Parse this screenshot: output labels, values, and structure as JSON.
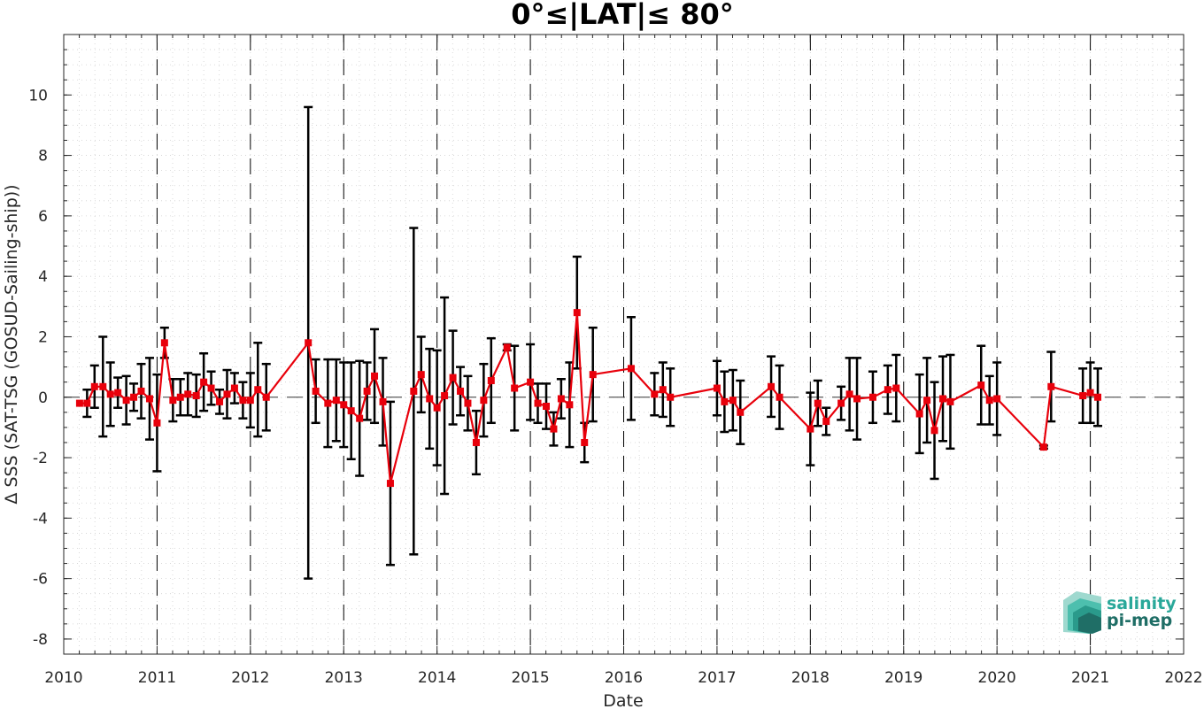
{
  "chart_data": {
    "type": "line",
    "title": "0°≤|LAT|≤ 80°",
    "xlabel": "Date",
    "ylabel": "Δ SSS (SAT-TSG (GOSUD-Sailing-ship))",
    "xlim": [
      2010,
      2022
    ],
    "ylim": [
      -8.5,
      12
    ],
    "x_ticks": [
      "2010",
      "2011",
      "2012",
      "2013",
      "2014",
      "2015",
      "2016",
      "2017",
      "2018",
      "2019",
      "2020",
      "2021",
      "2022"
    ],
    "y_ticks": [
      "-8",
      "-6",
      "-4",
      "-2",
      "0",
      "2",
      "4",
      "6",
      "8",
      "10"
    ],
    "grid": "minor dotted",
    "year_separators": "dashed vertical lines at each year",
    "zero_line": "dashed horizontal line at 0",
    "series": [
      {
        "color": "#e8000b",
        "marker": "square",
        "points": [
          {
            "x": 2010.17,
            "y": -0.2,
            "err": 0.0
          },
          {
            "x": 2010.25,
            "y": -0.2,
            "err": 0.45
          },
          {
            "x": 2010.33,
            "y": 0.35,
            "err": 0.7
          },
          {
            "x": 2010.42,
            "y": 0.35,
            "err": 1.65
          },
          {
            "x": 2010.5,
            "y": 0.1,
            "err": 1.05
          },
          {
            "x": 2010.58,
            "y": 0.15,
            "err": 0.5
          },
          {
            "x": 2010.67,
            "y": -0.1,
            "err": 0.8
          },
          {
            "x": 2010.75,
            "y": 0.0,
            "err": 0.45
          },
          {
            "x": 2010.83,
            "y": 0.2,
            "err": 0.9
          },
          {
            "x": 2010.92,
            "y": -0.05,
            "err": 1.35
          },
          {
            "x": 2011.0,
            "y": -0.85,
            "err": 1.6
          },
          {
            "x": 2011.08,
            "y": 1.8,
            "err": 0.5
          },
          {
            "x": 2011.17,
            "y": -0.1,
            "err": 0.7
          },
          {
            "x": 2011.25,
            "y": 0.0,
            "err": 0.6
          },
          {
            "x": 2011.33,
            "y": 0.1,
            "err": 0.7
          },
          {
            "x": 2011.42,
            "y": 0.05,
            "err": 0.7
          },
          {
            "x": 2011.5,
            "y": 0.5,
            "err": 0.95
          },
          {
            "x": 2011.58,
            "y": 0.3,
            "err": 0.55
          },
          {
            "x": 2011.67,
            "y": -0.15,
            "err": 0.4
          },
          {
            "x": 2011.75,
            "y": 0.1,
            "err": 0.8
          },
          {
            "x": 2011.83,
            "y": 0.3,
            "err": 0.5
          },
          {
            "x": 2011.92,
            "y": -0.1,
            "err": 0.6
          },
          {
            "x": 2012.0,
            "y": -0.1,
            "err": 0.9
          },
          {
            "x": 2012.08,
            "y": 0.25,
            "err": 1.55
          },
          {
            "x": 2012.17,
            "y": 0.0,
            "err": 1.1
          },
          {
            "x": 2012.62,
            "y": 1.8,
            "err": 7.8
          },
          {
            "x": 2012.7,
            "y": 0.2,
            "err": 1.05
          },
          {
            "x": 2012.83,
            "y": -0.2,
            "err": 1.45
          },
          {
            "x": 2012.92,
            "y": -0.1,
            "err": 1.35
          },
          {
            "x": 2013.0,
            "y": -0.25,
            "err": 1.4
          },
          {
            "x": 2013.08,
            "y": -0.45,
            "err": 1.6
          },
          {
            "x": 2013.17,
            "y": -0.7,
            "err": 1.9
          },
          {
            "x": 2013.25,
            "y": 0.2,
            "err": 0.95
          },
          {
            "x": 2013.33,
            "y": 0.7,
            "err": 1.55
          },
          {
            "x": 2013.42,
            "y": -0.15,
            "err": 1.45
          },
          {
            "x": 2013.5,
            "y": -2.85,
            "err": 2.7
          },
          {
            "x": 2013.75,
            "y": 0.2,
            "err": 5.4
          },
          {
            "x": 2013.83,
            "y": 0.75,
            "err": 1.25
          },
          {
            "x": 2013.92,
            "y": -0.05,
            "err": 1.65
          },
          {
            "x": 2014.0,
            "y": -0.35,
            "err": 1.9
          },
          {
            "x": 2014.08,
            "y": 0.05,
            "err": 3.25
          },
          {
            "x": 2014.17,
            "y": 0.65,
            "err": 1.55
          },
          {
            "x": 2014.25,
            "y": 0.2,
            "err": 0.8
          },
          {
            "x": 2014.33,
            "y": -0.2,
            "err": 0.9
          },
          {
            "x": 2014.42,
            "y": -1.5,
            "err": 1.05
          },
          {
            "x": 2014.5,
            "y": -0.1,
            "err": 1.2
          },
          {
            "x": 2014.58,
            "y": 0.55,
            "err": 1.4
          },
          {
            "x": 2014.75,
            "y": 1.65,
            "err": 0.1
          },
          {
            "x": 2014.83,
            "y": 0.3,
            "err": 1.4
          },
          {
            "x": 2015.0,
            "y": 0.5,
            "err": 1.25
          },
          {
            "x": 2015.08,
            "y": -0.2,
            "err": 0.65
          },
          {
            "x": 2015.17,
            "y": -0.3,
            "err": 0.75
          },
          {
            "x": 2015.25,
            "y": -1.05,
            "err": 0.55
          },
          {
            "x": 2015.33,
            "y": -0.05,
            "err": 0.65
          },
          {
            "x": 2015.42,
            "y": -0.25,
            "err": 1.4
          },
          {
            "x": 2015.5,
            "y": 2.8,
            "err": 1.85
          },
          {
            "x": 2015.58,
            "y": -1.5,
            "err": 0.65
          },
          {
            "x": 2015.67,
            "y": 0.75,
            "err": 1.55
          },
          {
            "x": 2016.08,
            "y": 0.95,
            "err": 1.7
          },
          {
            "x": 2016.33,
            "y": 0.1,
            "err": 0.7
          },
          {
            "x": 2016.42,
            "y": 0.25,
            "err": 0.9
          },
          {
            "x": 2016.5,
            "y": 0.0,
            "err": 0.95
          },
          {
            "x": 2017.0,
            "y": 0.3,
            "err": 0.9
          },
          {
            "x": 2017.08,
            "y": -0.15,
            "err": 1.0
          },
          {
            "x": 2017.17,
            "y": -0.1,
            "err": 1.0
          },
          {
            "x": 2017.25,
            "y": -0.5,
            "err": 1.05
          },
          {
            "x": 2017.58,
            "y": 0.35,
            "err": 1.0
          },
          {
            "x": 2017.67,
            "y": 0.0,
            "err": 1.05
          },
          {
            "x": 2018.0,
            "y": -1.05,
            "err": 1.2
          },
          {
            "x": 2018.08,
            "y": -0.2,
            "err": 0.75
          },
          {
            "x": 2018.17,
            "y": -0.8,
            "err": 0.45
          },
          {
            "x": 2018.33,
            "y": -0.2,
            "err": 0.55
          },
          {
            "x": 2018.42,
            "y": 0.1,
            "err": 1.2
          },
          {
            "x": 2018.5,
            "y": -0.05,
            "err": 1.35
          },
          {
            "x": 2018.67,
            "y": 0.0,
            "err": 0.85
          },
          {
            "x": 2018.83,
            "y": 0.25,
            "err": 0.8
          },
          {
            "x": 2018.92,
            "y": 0.3,
            "err": 1.1
          },
          {
            "x": 2019.17,
            "y": -0.55,
            "err": 1.3
          },
          {
            "x": 2019.25,
            "y": -0.1,
            "err": 1.4
          },
          {
            "x": 2019.33,
            "y": -1.1,
            "err": 1.6
          },
          {
            "x": 2019.42,
            "y": -0.05,
            "err": 1.4
          },
          {
            "x": 2019.5,
            "y": -0.15,
            "err": 1.55
          },
          {
            "x": 2019.83,
            "y": 0.4,
            "err": 1.3
          },
          {
            "x": 2019.92,
            "y": -0.1,
            "err": 0.8
          },
          {
            "x": 2020.0,
            "y": -0.05,
            "err": 1.2
          },
          {
            "x": 2020.5,
            "y": -1.65,
            "err": 0.05
          },
          {
            "x": 2020.58,
            "y": 0.35,
            "err": 1.15
          },
          {
            "x": 2020.92,
            "y": 0.05,
            "err": 0.9
          },
          {
            "x": 2021.0,
            "y": 0.15,
            "err": 1.0
          },
          {
            "x": 2021.08,
            "y": 0.0,
            "err": 0.95
          }
        ]
      }
    ],
    "errorbar_color": "#000000"
  },
  "logo": {
    "line1": "salinity",
    "line2": "pi-mep",
    "color1": "#2aa89a",
    "color2": "#1f6e66"
  }
}
